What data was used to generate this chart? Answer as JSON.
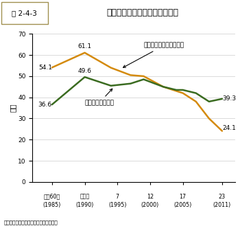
{
  "title_num": "図 2-4-3",
  "title_text": "食品卸売業の商品販売額の推移",
  "ylabel": "兆円",
  "source": "資料：経済産業省「商業動態統計調査」",
  "x_tick_positions": [
    1985,
    1990,
    1995,
    2000,
    2005,
    2011
  ],
  "x_tick_top": [
    "昭和60年",
    "平成２",
    "7",
    "12",
    "17",
    "23"
  ],
  "x_tick_bot": [
    "(1985)",
    "(1990)",
    "(1995)",
    "(2000)",
    "(2005)",
    "(2011)"
  ],
  "x_values": [
    1985,
    1990,
    1994,
    1997,
    1999,
    2002,
    2004,
    2005,
    2007,
    2009,
    2011
  ],
  "orange_line": {
    "label": "農畜産物・水産物卸売業",
    "color": "#D48A0C",
    "values": [
      54.1,
      61.1,
      54.0,
      50.5,
      50.0,
      45.0,
      43.0,
      42.0,
      38.0,
      30.0,
      24.1
    ]
  },
  "green_line": {
    "label": "食料・飲料卸売業",
    "color": "#3A6B20",
    "values": [
      36.6,
      49.6,
      45.5,
      46.5,
      48.5,
      45.0,
      43.5,
      43.5,
      42.0,
      38.0,
      39.3
    ]
  },
  "ylim": [
    0,
    70
  ],
  "yticks": [
    0,
    10,
    20,
    30,
    40,
    50,
    60,
    70
  ],
  "xlim": [
    1982,
    2013
  ],
  "title_bg": "#F0E8A0",
  "title_border": "#A09050",
  "fig_bg": "#FFFFFF"
}
